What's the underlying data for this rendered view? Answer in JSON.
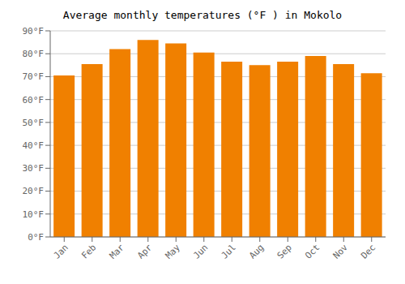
{
  "chart_data": {
    "type": "bar",
    "title": "Average monthly temperatures (°F ) in Mokolo",
    "categories": [
      "Jan",
      "Feb",
      "Mar",
      "Apr",
      "May",
      "Jun",
      "Jul",
      "Aug",
      "Sep",
      "Oct",
      "Nov",
      "Dec"
    ],
    "values": [
      70.5,
      75.5,
      82,
      86,
      84.5,
      80.5,
      76.5,
      75,
      76.5,
      79,
      75.5,
      71.5
    ],
    "color": "#F08000",
    "ylim": [
      0,
      90
    ],
    "yticks": [
      {
        "value": 0,
        "label": "0°F"
      },
      {
        "value": 10,
        "label": "10°F"
      },
      {
        "value": 20,
        "label": "20°F"
      },
      {
        "value": 30,
        "label": "30°F"
      },
      {
        "value": 40,
        "label": "40°F"
      },
      {
        "value": 50,
        "label": "50°F"
      },
      {
        "value": 60,
        "label": "60°F"
      },
      {
        "value": 70,
        "label": "70°F"
      },
      {
        "value": 80,
        "label": "80°F"
      },
      {
        "value": 90,
        "label": "90°F"
      }
    ],
    "grid": true
  }
}
